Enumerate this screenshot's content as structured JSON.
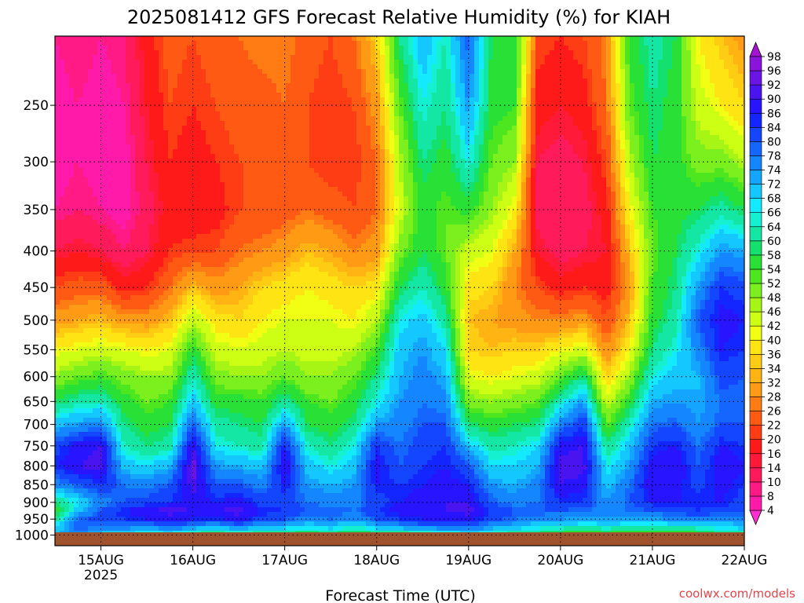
{
  "chart_data": {
    "type": "heatmap",
    "title": "2025081412 GFS Forecast Relative Humidity (%) for KIAH",
    "xlabel": "Forecast Time (UTC)",
    "ylabel": "",
    "credit": "coolwx.com/models",
    "x_ticks": [
      {
        "label": "15AUG",
        "sublabel": "2025",
        "hours": 12
      },
      {
        "label": "16AUG",
        "sublabel": "",
        "hours": 36
      },
      {
        "label": "17AUG",
        "sublabel": "",
        "hours": 60
      },
      {
        "label": "18AUG",
        "sublabel": "",
        "hours": 84
      },
      {
        "label": "19AUG",
        "sublabel": "",
        "hours": 108
      },
      {
        "label": "20AUG",
        "sublabel": "",
        "hours": 132
      },
      {
        "label": "21AUG",
        "sublabel": "",
        "hours": 156
      },
      {
        "label": "22AUG",
        "sublabel": "",
        "hours": 180
      }
    ],
    "x_range_hours": [
      0,
      180
    ],
    "y_axis_scale": "log",
    "y_range_hpa": [
      1035,
      200
    ],
    "y_ticks_hpa": [
      250,
      300,
      350,
      400,
      450,
      500,
      550,
      600,
      650,
      700,
      750,
      800,
      850,
      900,
      950,
      1000
    ],
    "grid": true,
    "ground_color": "#a0522d",
    "colorbar": {
      "placement": "right",
      "levels": [
        4,
        8,
        10,
        14,
        16,
        20,
        22,
        26,
        28,
        32,
        34,
        36,
        40,
        42,
        46,
        48,
        52,
        54,
        58,
        60,
        64,
        66,
        68,
        72,
        74,
        78,
        80,
        84,
        86,
        90,
        92,
        96,
        98
      ],
      "colors": [
        "#ff2fd1",
        "#ff1aa9",
        "#ff1a86",
        "#ff1a5c",
        "#ff1a3a",
        "#ff1a1a",
        "#ff3d14",
        "#ff5a14",
        "#ff7b14",
        "#ff9a14",
        "#ffb414",
        "#ffcc14",
        "#ffe414",
        "#f0ff14",
        "#ccff14",
        "#a6f514",
        "#7cf01e",
        "#4ee61e",
        "#28e036",
        "#14e06e",
        "#14e6a4",
        "#14f0d0",
        "#14eaff",
        "#14c8ff",
        "#14a6ff",
        "#1486ff",
        "#1466ff",
        "#1446ff",
        "#1426ff",
        "#2814ff",
        "#4a14f0",
        "#6a14e6",
        "#8a14dc",
        "#a414d0"
      ]
    },
    "time_axis_hours": [
      0,
      6,
      12,
      18,
      24,
      30,
      36,
      42,
      48,
      54,
      60,
      66,
      72,
      78,
      84,
      90,
      96,
      102,
      108,
      114,
      120,
      126,
      132,
      138,
      144,
      150,
      156,
      162,
      168,
      174,
      180
    ],
    "levels_hpa": [
      1000,
      975,
      950,
      925,
      900,
      850,
      800,
      750,
      700,
      650,
      600,
      550,
      500,
      450,
      400,
      350,
      300,
      250,
      200
    ],
    "rh_percent": [
      [
        72,
        68,
        60,
        55,
        60,
        75,
        85,
        82,
        70,
        58,
        48,
        40,
        30,
        22,
        14,
        8,
        6,
        6,
        8
      ],
      [
        74,
        80,
        78,
        70,
        66,
        80,
        90,
        88,
        74,
        62,
        52,
        42,
        32,
        24,
        16,
        10,
        8,
        8,
        10
      ],
      [
        70,
        78,
        82,
        80,
        76,
        84,
        92,
        90,
        76,
        64,
        54,
        44,
        34,
        24,
        14,
        8,
        6,
        6,
        8
      ],
      [
        68,
        76,
        84,
        86,
        80,
        78,
        70,
        64,
        60,
        56,
        50,
        42,
        30,
        18,
        10,
        6,
        6,
        8,
        10
      ],
      [
        64,
        74,
        86,
        90,
        82,
        76,
        68,
        60,
        56,
        52,
        48,
        40,
        30,
        20,
        14,
        12,
        14,
        16,
        18
      ],
      [
        66,
        78,
        88,
        92,
        84,
        80,
        72,
        62,
        58,
        54,
        48,
        42,
        34,
        26,
        20,
        18,
        20,
        22,
        24
      ],
      [
        62,
        74,
        86,
        90,
        88,
        92,
        94,
        90,
        80,
        70,
        64,
        56,
        46,
        34,
        22,
        16,
        18,
        20,
        22
      ],
      [
        60,
        72,
        84,
        90,
        86,
        80,
        74,
        66,
        62,
        56,
        50,
        44,
        38,
        30,
        22,
        18,
        20,
        22,
        24
      ],
      [
        62,
        76,
        88,
        92,
        88,
        80,
        72,
        64,
        60,
        56,
        48,
        42,
        36,
        32,
        26,
        22,
        22,
        24,
        26
      ],
      [
        60,
        72,
        82,
        86,
        82,
        76,
        70,
        62,
        58,
        54,
        48,
        44,
        40,
        36,
        28,
        22,
        22,
        24,
        28
      ],
      [
        58,
        70,
        80,
        84,
        82,
        86,
        90,
        86,
        74,
        62,
        52,
        46,
        42,
        38,
        30,
        24,
        24,
        26,
        28
      ],
      [
        56,
        68,
        76,
        80,
        78,
        74,
        70,
        64,
        58,
        54,
        48,
        44,
        42,
        40,
        34,
        26,
        22,
        22,
        24
      ],
      [
        58,
        70,
        78,
        80,
        76,
        72,
        66,
        60,
        56,
        52,
        48,
        44,
        42,
        38,
        32,
        24,
        20,
        20,
        22
      ],
      [
        56,
        66,
        74,
        78,
        76,
        74,
        70,
        66,
        60,
        56,
        52,
        46,
        40,
        36,
        28,
        22,
        20,
        22,
        26
      ],
      [
        58,
        70,
        80,
        84,
        82,
        86,
        88,
        84,
        74,
        66,
        60,
        54,
        46,
        38,
        30,
        26,
        26,
        30,
        36
      ],
      [
        60,
        74,
        84,
        88,
        86,
        84,
        80,
        78,
        76,
        74,
        72,
        70,
        66,
        58,
        50,
        44,
        46,
        52,
        60
      ],
      [
        62,
        76,
        86,
        90,
        88,
        86,
        84,
        82,
        80,
        78,
        76,
        74,
        70,
        64,
        58,
        56,
        60,
        66,
        72
      ],
      [
        64,
        76,
        86,
        90,
        90,
        88,
        86,
        84,
        80,
        76,
        72,
        68,
        62,
        56,
        52,
        52,
        56,
        60,
        64
      ],
      [
        66,
        78,
        88,
        92,
        90,
        86,
        80,
        70,
        60,
        50,
        42,
        36,
        34,
        38,
        44,
        56,
        66,
        74,
        80
      ],
      [
        64,
        74,
        82,
        84,
        80,
        74,
        68,
        62,
        56,
        48,
        40,
        34,
        32,
        36,
        42,
        48,
        52,
        56,
        58
      ],
      [
        60,
        70,
        78,
        80,
        76,
        72,
        68,
        64,
        58,
        50,
        42,
        36,
        30,
        28,
        32,
        40,
        48,
        54,
        58
      ],
      [
        58,
        68,
        76,
        80,
        78,
        76,
        72,
        68,
        60,
        52,
        44,
        36,
        28,
        22,
        16,
        12,
        14,
        18,
        22
      ],
      [
        56,
        66,
        74,
        80,
        84,
        90,
        92,
        88,
        76,
        64,
        52,
        40,
        28,
        18,
        12,
        10,
        12,
        16,
        20
      ],
      [
        54,
        64,
        72,
        78,
        84,
        88,
        92,
        90,
        84,
        74,
        60,
        44,
        30,
        20,
        14,
        12,
        14,
        18,
        22
      ],
      [
        56,
        66,
        72,
        76,
        74,
        70,
        66,
        60,
        52,
        44,
        36,
        28,
        22,
        18,
        16,
        18,
        22,
        26,
        28
      ],
      [
        54,
        64,
        72,
        78,
        80,
        78,
        74,
        70,
        64,
        56,
        48,
        40,
        34,
        30,
        34,
        40,
        46,
        52,
        56
      ],
      [
        52,
        62,
        72,
        80,
        86,
        90,
        88,
        84,
        78,
        72,
        66,
        60,
        56,
        54,
        52,
        54,
        58,
        60,
        62
      ],
      [
        54,
        64,
        76,
        82,
        86,
        88,
        90,
        86,
        80,
        74,
        70,
        66,
        62,
        60,
        58,
        56,
        56,
        56,
        58
      ],
      [
        56,
        66,
        76,
        84,
        86,
        82,
        80,
        78,
        74,
        72,
        72,
        76,
        80,
        74,
        66,
        58,
        50,
        44,
        40
      ],
      [
        58,
        68,
        76,
        82,
        86,
        88,
        90,
        86,
        80,
        78,
        82,
        86,
        88,
        84,
        74,
        62,
        50,
        40,
        34
      ],
      [
        60,
        70,
        76,
        80,
        82,
        84,
        86,
        84,
        80,
        78,
        80,
        84,
        86,
        82,
        72,
        58,
        46,
        36,
        30
      ]
    ]
  }
}
